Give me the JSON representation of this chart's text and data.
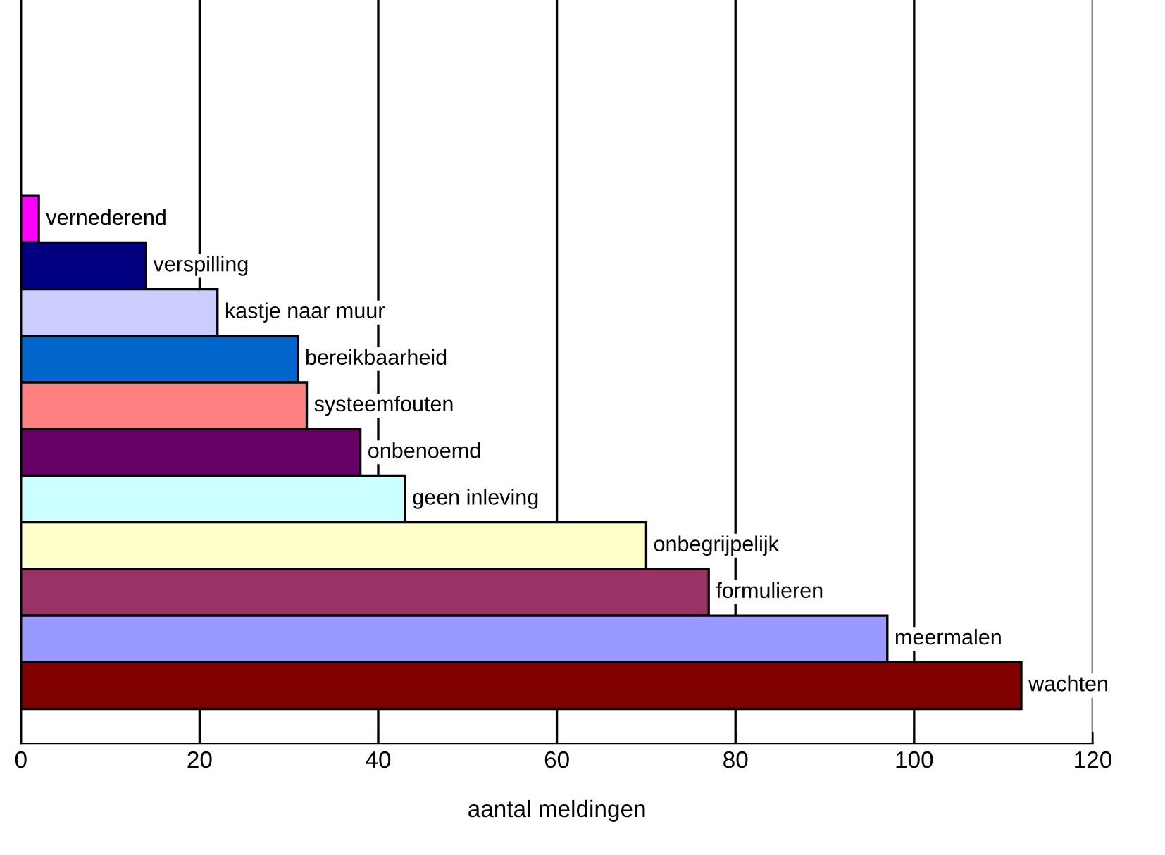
{
  "chart_data": {
    "type": "bar",
    "orientation": "horizontal",
    "xlabel": "aantal meldingen",
    "categories": [
      "vernederend",
      "verspilling",
      "kastje naar muur",
      "bereikbaarheid",
      "systeemfouten",
      "onbenoemd",
      "geen inleving",
      "onbegrijpelijk",
      "formulieren",
      "meermalen",
      "wachten"
    ],
    "values": [
      2,
      14,
      22,
      31,
      32,
      38,
      43,
      70,
      77,
      97,
      112
    ],
    "colors": [
      "#ff00ff",
      "#000080",
      "#ccccff",
      "#0066cc",
      "#ff8080",
      "#660066",
      "#ccffff",
      "#ffffcc",
      "#993366",
      "#9999ff",
      "#800000"
    ],
    "xlim": [
      0,
      120
    ],
    "xticks": [
      0,
      20,
      40,
      60,
      80,
      100,
      120
    ],
    "grid": "x",
    "tick_labels": "x"
  }
}
